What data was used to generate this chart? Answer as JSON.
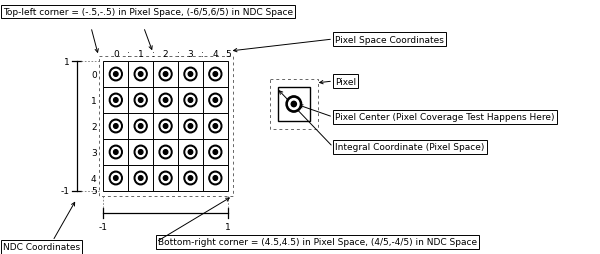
{
  "grid_rows": 5,
  "grid_cols": 5,
  "pixel_col_labels": [
    "0",
    "1",
    "2",
    "3",
    "4",
    "5"
  ],
  "pixel_row_labels": [
    "0",
    "1",
    "2",
    "3",
    "4",
    "5"
  ],
  "top_left_note": "Top-left corner = (-.5,-.5) in Pixel Space, (-6/5,6/5) in NDC Space",
  "bottom_right_note": "Bottom-right corner = (4.5,4.5) in Pixel Space, (4/5,-4/5) in NDC Space",
  "ndc_label": "NDC Coordinates",
  "pixel_space_label": "Pixel Space Coordinates",
  "pixel_label": "Pixel",
  "pixel_center_label": "Pixel Center (Pixel Coverage Test Happens Here)",
  "integral_coord_label": "Integral Coordinate (Pixel Space)",
  "bg_color": "#ffffff",
  "font_size": 6.5
}
